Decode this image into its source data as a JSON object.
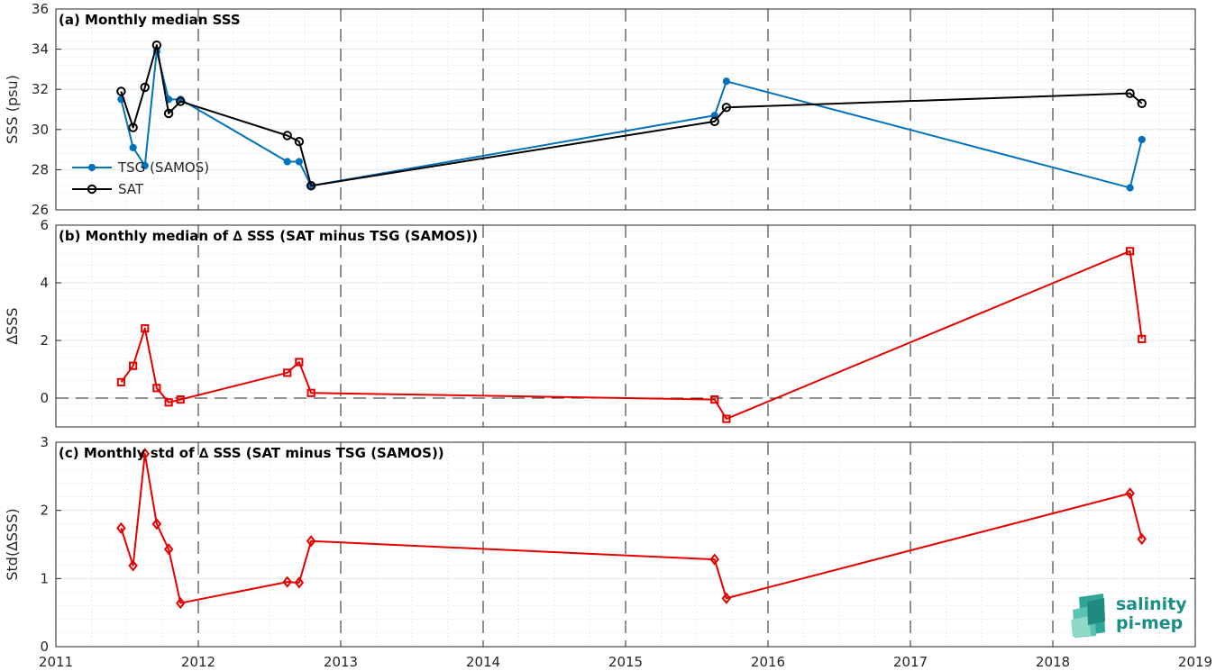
{
  "x_axis": {
    "tick_labels": [
      "2011",
      "2012",
      "2013",
      "2014",
      "2015",
      "2016",
      "2017",
      "2018",
      "2019"
    ],
    "ticks": [
      2011,
      2012,
      2013,
      2014,
      2015,
      2016,
      2017,
      2018,
      2019
    ],
    "xlim": [
      2011,
      2019
    ],
    "year_dashed_lines": [
      2012,
      2013,
      2014,
      2015,
      2016,
      2017,
      2018
    ]
  },
  "logo": {
    "line1": "salinity",
    "line2": "pi-mep"
  },
  "colors": {
    "tsg": "#0072bd",
    "sat": "#000000",
    "delta": "#e50000"
  },
  "chart_data": [
    {
      "type": "line",
      "title": "(a) Monthly median SSS",
      "ylabel": "SSS (psu)",
      "ylim": [
        26,
        36
      ],
      "yticks": [
        26,
        28,
        30,
        32,
        34,
        36
      ],
      "grid": true,
      "legend_placement": "left",
      "series": [
        {
          "name": "TSG (SAMOS)",
          "marker": "dot",
          "x": [
            2011.458,
            2011.542,
            2011.625,
            2011.708,
            2011.792,
            2011.875,
            2012.625,
            2012.708,
            2012.792,
            2015.625,
            2015.708,
            2018.542,
            2018.625
          ],
          "values": [
            31.5,
            29.1,
            28.2,
            33.9,
            31.5,
            31.5,
            28.4,
            28.4,
            27.2,
            30.7,
            32.4,
            27.1,
            29.5
          ]
        },
        {
          "name": "SAT",
          "marker": "circle",
          "x": [
            2011.458,
            2011.542,
            2011.625,
            2011.708,
            2011.792,
            2011.875,
            2012.625,
            2012.708,
            2012.792,
            2015.625,
            2015.708,
            2018.542,
            2018.625
          ],
          "values": [
            31.9,
            30.1,
            32.1,
            34.2,
            30.8,
            31.4,
            29.7,
            29.4,
            27.2,
            30.4,
            31.1,
            31.8,
            31.3
          ]
        }
      ]
    },
    {
      "type": "line",
      "title": "(b) Monthly median of ∆ SSS (SAT minus TSG (SAMOS))",
      "ylabel": "∆SSS",
      "ylim": [
        -1,
        6
      ],
      "yticks": [
        0,
        2,
        4,
        6
      ],
      "grid": true,
      "zero_line": true,
      "series": [
        {
          "marker": "square",
          "x": [
            2011.458,
            2011.542,
            2011.625,
            2011.708,
            2011.792,
            2011.875,
            2012.625,
            2012.708,
            2012.792,
            2015.625,
            2015.708,
            2018.542,
            2018.625
          ],
          "values": [
            0.55,
            1.12,
            2.42,
            0.35,
            -0.15,
            -0.05,
            0.88,
            1.25,
            0.18,
            -0.05,
            -0.72,
            5.1,
            2.05
          ]
        }
      ]
    },
    {
      "type": "line",
      "title": "(c) Monthly std of ∆ SSS (SAT minus TSG (SAMOS))",
      "ylabel": "Std(∆SSS)",
      "ylim": [
        0,
        3
      ],
      "yticks": [
        0,
        1,
        2,
        3
      ],
      "grid": true,
      "series": [
        {
          "marker": "diamond",
          "x": [
            2011.458,
            2011.542,
            2011.625,
            2011.708,
            2011.792,
            2011.875,
            2012.625,
            2012.708,
            2012.792,
            2015.625,
            2015.708,
            2018.542,
            2018.625
          ],
          "values": [
            1.74,
            1.19,
            2.83,
            1.8,
            1.43,
            0.64,
            0.95,
            0.94,
            1.55,
            1.28,
            0.71,
            2.25,
            1.58
          ]
        }
      ]
    }
  ]
}
